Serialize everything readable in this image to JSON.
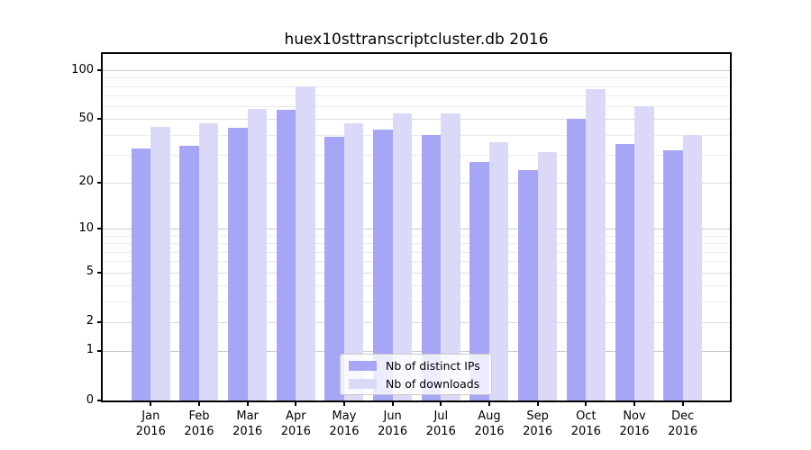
{
  "chart_data": {
    "type": "bar",
    "title": "huex10sttranscriptcluster.db 2016",
    "categories": [
      "Jan",
      "Feb",
      "Mar",
      "Apr",
      "May",
      "Jun",
      "Jul",
      "Aug",
      "Sep",
      "Oct",
      "Nov",
      "Dec"
    ],
    "category_year": "2016",
    "series": [
      {
        "name": "Nb of distinct IPs",
        "color": "#a6a6f4",
        "values": [
          33,
          34,
          44,
          57,
          39,
          43,
          40,
          27,
          24,
          50,
          35,
          32
        ]
      },
      {
        "name": "Nb of downloads",
        "color": "#dadaf8",
        "values": [
          45,
          47,
          58,
          80,
          47,
          54,
          54,
          36,
          31,
          77,
          60,
          40
        ]
      }
    ],
    "yscale": "log1p",
    "yticks": [
      0,
      1,
      2,
      5,
      10,
      20,
      50,
      100
    ],
    "ylim": [
      0,
      126
    ],
    "grid": "horizontal",
    "legend_position": "bottom-center",
    "colors": {
      "major_gridline": "#c9c9c9",
      "labeled_gridline": "#dcdcdc",
      "minor_gridline": "#ececec",
      "spine": "#000000",
      "legend_border": "#cccccc"
    }
  }
}
